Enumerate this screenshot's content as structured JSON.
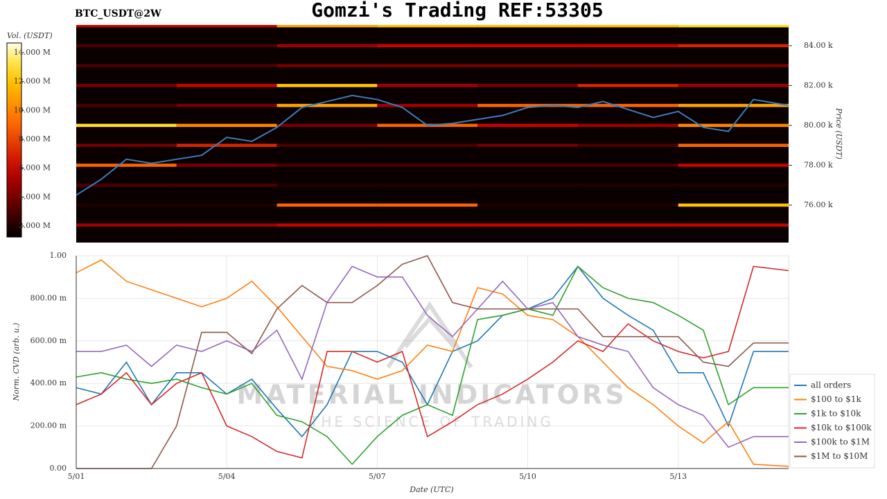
{
  "chart_data": [
    {
      "type": "heatmap",
      "title": "Gomzi's Trading REF:53305",
      "subtitle": "BTC_USDT@2W",
      "colorbar_label": "Vol. (USDT)",
      "y_label": "Price (USDT)",
      "zlim": [
        1230000,
        14670000
      ],
      "zticks": [
        {
          "value": 2000000,
          "label": "2.000 M"
        },
        {
          "value": 4000000,
          "label": "4.000 M"
        },
        {
          "value": 6000000,
          "label": "6.000 M"
        },
        {
          "value": 8000000,
          "label": "8.000 M"
        },
        {
          "value": 10000000,
          "label": "10.000 M"
        },
        {
          "value": 12000000,
          "label": "12.000 M"
        },
        {
          "value": 14000000,
          "label": "14.000 M"
        }
      ],
      "xlim": [
        1,
        15.2
      ],
      "ylim": [
        74120,
        85040
      ],
      "yticks": [
        {
          "value": 76000,
          "label": "76.00 k"
        },
        {
          "value": 78000,
          "label": "78.00 k"
        },
        {
          "value": 80000,
          "label": "80.00 k"
        },
        {
          "value": 82000,
          "label": "82.00 k"
        },
        {
          "value": 84000,
          "label": "84.00 k"
        }
      ],
      "x_bins": [
        1,
        3,
        5,
        7,
        9,
        11,
        13,
        15.2
      ],
      "levels": [
        75000,
        76000,
        77000,
        78000,
        79000,
        80000,
        81000,
        82000,
        83000,
        84000,
        85000
      ],
      "z": [
        [
          5000000,
          5000000,
          6000000,
          6000000,
          6000000,
          6000000,
          6000000
        ],
        [
          2000000,
          2000000,
          9000000,
          9000000,
          2000000,
          2000000,
          12000000
        ],
        [
          3000000,
          3000000,
          2000000,
          2000000,
          2000000,
          2000000,
          2000000
        ],
        [
          9000000,
          4000000,
          3000000,
          3000000,
          3000000,
          3000000,
          6000000
        ],
        [
          4000000,
          7000000,
          3000000,
          3000000,
          4000000,
          3000000,
          9000000
        ],
        [
          13000000,
          10000000,
          4000000,
          9000000,
          6000000,
          5000000,
          10000000
        ],
        [
          3000000,
          4000000,
          11000000,
          5000000,
          9000000,
          9000000,
          11000000
        ],
        [
          4000000,
          6000000,
          12000000,
          5000000,
          4000000,
          7000000,
          5000000
        ],
        [
          3000000,
          3000000,
          4000000,
          4000000,
          4000000,
          4000000,
          4000000
        ],
        [
          3000000,
          3000000,
          5000000,
          6000000,
          6000000,
          6000000,
          7000000
        ],
        [
          6000000,
          6000000,
          11000000,
          12000000,
          12000000,
          12000000,
          13000000
        ]
      ],
      "x": [
        1,
        1.5,
        2,
        2.5,
        3,
        3.5,
        4,
        4.5,
        5,
        5.5,
        6,
        6.5,
        7,
        7.5,
        8,
        8.5,
        9,
        9.5,
        10,
        10.5,
        11,
        11.5,
        12,
        12.5,
        13,
        13.5,
        14,
        14.5,
        15.2
      ],
      "series": [
        {
          "color": "#3a7dc0",
          "values": [
            76500,
            77300,
            78300,
            78100,
            78300,
            78500,
            79400,
            79200,
            79900,
            80900,
            81200,
            81500,
            81300,
            80900,
            80000,
            80100,
            80300,
            80500,
            80900,
            81000,
            80900,
            81200,
            80800,
            80400,
            80700,
            79900,
            79700,
            81300,
            81000
          ]
        }
      ]
    },
    {
      "type": "line",
      "y_label": "Norm. CVD (arb. u.)",
      "x_label": "Date (UTC)",
      "annotations": [
        "MATERIAL INDICATORS",
        "THE SCIENCE OF TRADING"
      ],
      "xlim": [
        1,
        15.2
      ],
      "xticks": [
        {
          "value": 1,
          "label": "5/01"
        },
        {
          "value": 4,
          "label": "5/04"
        },
        {
          "value": 7,
          "label": "5/07"
        },
        {
          "value": 10,
          "label": "5/10"
        },
        {
          "value": 13,
          "label": "5/13"
        }
      ],
      "ylim": [
        0,
        1
      ],
      "yticks": [
        {
          "value": 0,
          "label": "0.00"
        },
        {
          "value": 0.2,
          "label": "200.00 m"
        },
        {
          "value": 0.4,
          "label": "400.00 m"
        },
        {
          "value": 0.6,
          "label": "600.00 m"
        },
        {
          "value": 0.8,
          "label": "800.00 m"
        },
        {
          "value": 1,
          "label": "1.00"
        }
      ],
      "grid": true,
      "legend": "right",
      "x": [
        1,
        1.5,
        2,
        2.5,
        3,
        3.5,
        4,
        4.5,
        5,
        5.5,
        6,
        6.5,
        7,
        7.5,
        8,
        8.5,
        9,
        9.5,
        10,
        10.5,
        11,
        11.5,
        12,
        12.5,
        13,
        13.5,
        14,
        14.5,
        15.2
      ],
      "series": [
        {
          "name": "all orders",
          "color": "#1f77b4",
          "values": [
            0.38,
            0.35,
            0.5,
            0.3,
            0.45,
            0.45,
            0.35,
            0.42,
            0.28,
            0.15,
            0.3,
            0.55,
            0.55,
            0.5,
            0.3,
            0.55,
            0.6,
            0.72,
            0.75,
            0.8,
            0.95,
            0.8,
            0.72,
            0.65,
            0.45,
            0.45,
            0.2,
            0.55,
            0.55
          ]
        },
        {
          "name": "$100 to $1k",
          "color": "#ff7f0e",
          "values": [
            0.92,
            0.98,
            0.88,
            0.84,
            0.8,
            0.76,
            0.8,
            0.88,
            0.76,
            0.62,
            0.48,
            0.46,
            0.42,
            0.46,
            0.58,
            0.55,
            0.85,
            0.82,
            0.72,
            0.7,
            0.62,
            0.5,
            0.38,
            0.3,
            0.2,
            0.12,
            0.22,
            0.02,
            0.01
          ]
        },
        {
          "name": "$1k to $10k",
          "color": "#2ca02c",
          "values": [
            0.43,
            0.45,
            0.42,
            0.4,
            0.42,
            0.38,
            0.35,
            0.4,
            0.25,
            0.22,
            0.15,
            0.02,
            0.15,
            0.25,
            0.3,
            0.25,
            0.7,
            0.72,
            0.75,
            0.72,
            0.95,
            0.85,
            0.8,
            0.78,
            0.72,
            0.65,
            0.3,
            0.38,
            0.38
          ]
        },
        {
          "name": "$10k to $100k",
          "color": "#d62728",
          "values": [
            0.3,
            0.35,
            0.45,
            0.3,
            0.4,
            0.45,
            0.2,
            0.15,
            0.08,
            0.05,
            0.55,
            0.55,
            0.5,
            0.55,
            0.15,
            0.22,
            0.3,
            0.35,
            0.42,
            0.5,
            0.6,
            0.55,
            0.68,
            0.6,
            0.55,
            0.52,
            0.55,
            0.95,
            0.93
          ]
        },
        {
          "name": "$100k to $1M",
          "color": "#9467bd",
          "values": [
            0.55,
            0.55,
            0.58,
            0.48,
            0.58,
            0.55,
            0.6,
            0.55,
            0.65,
            0.42,
            0.78,
            0.95,
            0.9,
            0.9,
            0.72,
            0.62,
            0.75,
            0.88,
            0.75,
            0.78,
            0.62,
            0.58,
            0.55,
            0.38,
            0.3,
            0.25,
            0.1,
            0.15,
            0.15
          ]
        },
        {
          "name": "$1M to $10M",
          "color": "#8c564b",
          "values": [
            0,
            0,
            0,
            0,
            0.2,
            0.64,
            0.64,
            0.54,
            0.75,
            0.86,
            0.78,
            0.78,
            0.86,
            0.96,
            1.0,
            0.78,
            0.75,
            0.75,
            0.75,
            0.75,
            0.75,
            0.62,
            0.62,
            0.62,
            0.62,
            0.5,
            0.48,
            0.59,
            0.59
          ]
        }
      ]
    }
  ]
}
